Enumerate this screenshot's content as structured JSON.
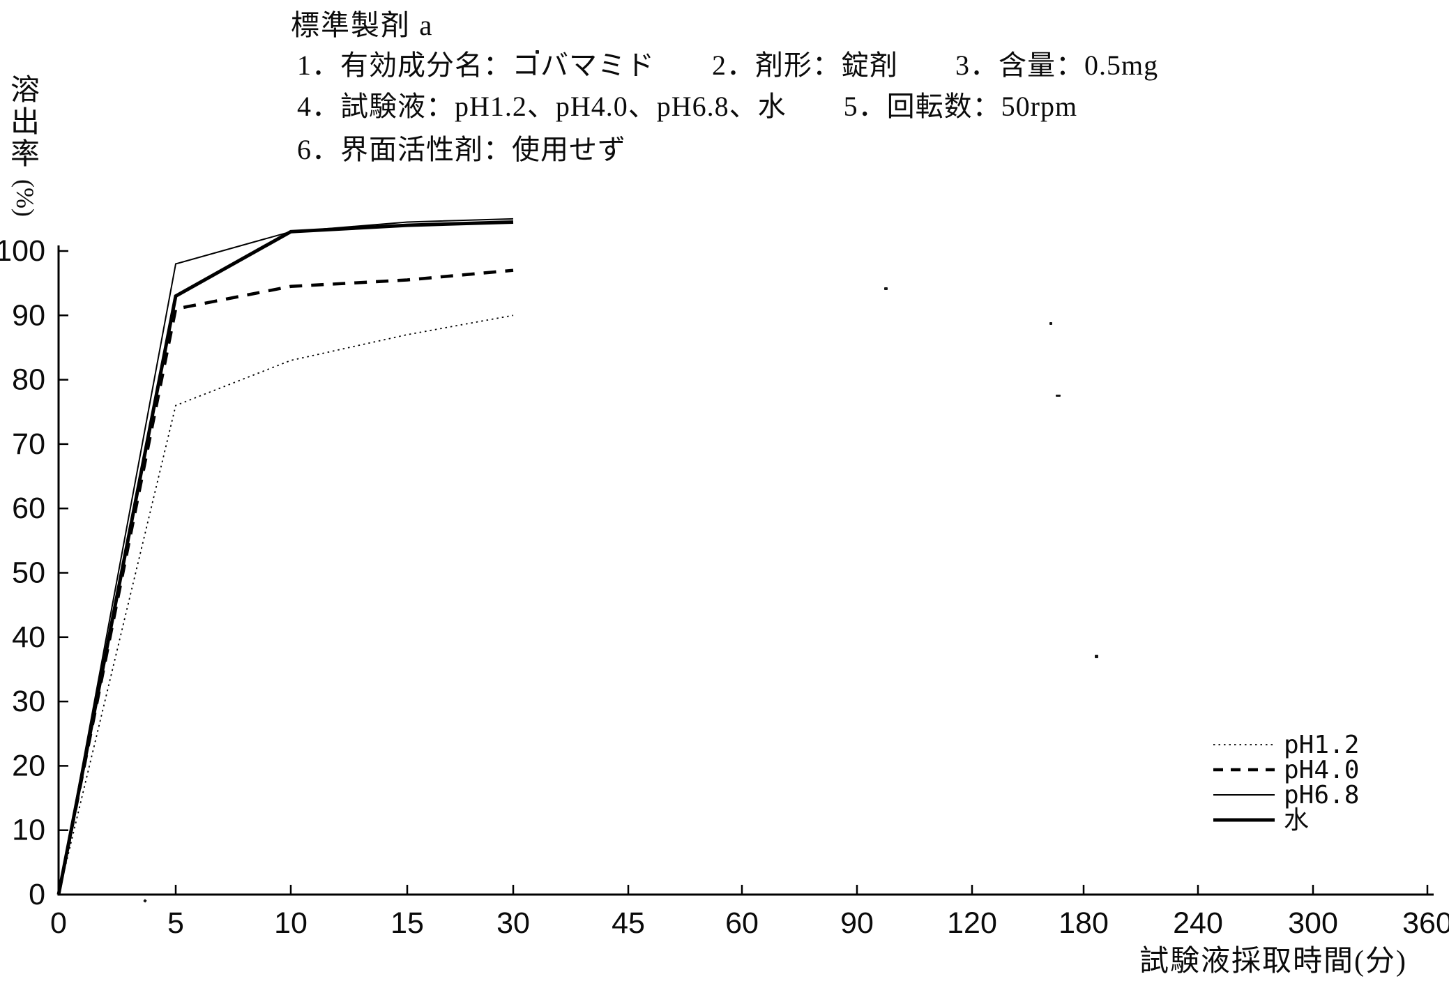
{
  "header": {
    "title": "標準製剤 a",
    "condition_lines": [
      "1．有効成分名：コバマミド　　2．剤形：錠剤　　3．含量：0.5mg",
      "4．試験液：pH1.2、pH4.0、pH6.8、水　　5．回転数：50rpm",
      "6．界面活性剤：使用せず"
    ]
  },
  "chart_data": {
    "type": "line",
    "title": "標準製剤 a",
    "xlabel": "試験液採取時間(分)",
    "ylabel": "溶出率(%)",
    "x_ticks": [
      0,
      5,
      10,
      15,
      30,
      45,
      60,
      90,
      120,
      180,
      240,
      300,
      360
    ],
    "x_tick_spacing": "equal (category axis)",
    "y_ticks": [
      0,
      10,
      20,
      30,
      40,
      50,
      60,
      70,
      80,
      90,
      100
    ],
    "ylim": [
      0,
      100
    ],
    "grid": false,
    "legend_position": "lower right",
    "x": [
      0,
      5,
      10,
      15,
      30
    ],
    "series": [
      {
        "name": "pH1.2",
        "line_style": "fine-dotted",
        "values": [
          0,
          76,
          83,
          87,
          90
        ]
      },
      {
        "name": "pH4.0",
        "line_style": "dashed",
        "values": [
          0,
          91,
          94.5,
          95.5,
          97
        ]
      },
      {
        "name": "pH6.8",
        "line_style": "solid-thin",
        "values": [
          0,
          98,
          103,
          104.5,
          105
        ]
      },
      {
        "name": "水",
        "line_style": "solid-thick",
        "values": [
          0,
          93,
          103,
          104,
          104.5
        ]
      }
    ]
  }
}
